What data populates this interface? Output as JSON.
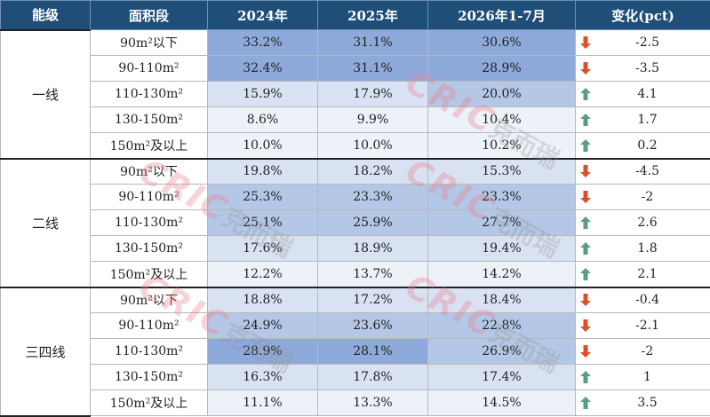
{
  "header": {
    "tier": "能级",
    "area": "面积段",
    "y2024": "2024年",
    "y2025": "2025年",
    "y2026": "2026年1-7月",
    "change": "变化(pct)"
  },
  "groups": [
    {
      "tier": "一线",
      "rows": [
        {
          "area": "90m²以下",
          "v2024": "33.2%",
          "v2025": "31.1%",
          "v2026": "30.6%",
          "change": "-2.5",
          "dir": "down"
        },
        {
          "area": "90-110m²",
          "v2024": "32.4%",
          "v2025": "31.1%",
          "v2026": "28.9%",
          "change": "-3.5",
          "dir": "down"
        },
        {
          "area": "110-130m²",
          "v2024": "15.9%",
          "v2025": "17.9%",
          "v2026": "20.0%",
          "change": "4.1",
          "dir": "up"
        },
        {
          "area": "130-150m²",
          "v2024": "8.6%",
          "v2025": "9.9%",
          "v2026": "10.4%",
          "change": "1.7",
          "dir": "up"
        },
        {
          "area": "150m²及以上",
          "v2024": "10.0%",
          "v2025": "10.0%",
          "v2026": "10.2%",
          "change": "0.2",
          "dir": "up"
        }
      ]
    },
    {
      "tier": "二线",
      "rows": [
        {
          "area": "90m²以下",
          "v2024": "19.8%",
          "v2025": "18.2%",
          "v2026": "15.3%",
          "change": "-4.5",
          "dir": "down"
        },
        {
          "area": "90-110m²",
          "v2024": "25.3%",
          "v2025": "23.3%",
          "v2026": "23.3%",
          "change": "-2",
          "dir": "down"
        },
        {
          "area": "110-130m²",
          "v2024": "25.1%",
          "v2025": "25.9%",
          "v2026": "27.7%",
          "change": "2.6",
          "dir": "up"
        },
        {
          "area": "130-150m²",
          "v2024": "17.6%",
          "v2025": "18.9%",
          "v2026": "19.4%",
          "change": "1.8",
          "dir": "up"
        },
        {
          "area": "150m²及以上",
          "v2024": "12.2%",
          "v2025": "13.7%",
          "v2026": "14.2%",
          "change": "2.1",
          "dir": "up"
        }
      ]
    },
    {
      "tier": "三四线",
      "rows": [
        {
          "area": "90m²以下",
          "v2024": "18.8%",
          "v2025": "17.2%",
          "v2026": "18.4%",
          "change": "-0.4",
          "dir": "down"
        },
        {
          "area": "90-110m²",
          "v2024": "24.9%",
          "v2025": "23.6%",
          "v2026": "22.8%",
          "change": "-2.1",
          "dir": "down"
        },
        {
          "area": "110-130m²",
          "v2024": "28.9%",
          "v2025": "28.1%",
          "v2026": "26.9%",
          "change": "-2",
          "dir": "down"
        },
        {
          "area": "130-150m²",
          "v2024": "16.3%",
          "v2025": "17.8%",
          "v2026": "17.4%",
          "change": "1",
          "dir": "up"
        },
        {
          "area": "150m²及以上",
          "v2024": "11.1%",
          "v2025": "13.3%",
          "v2026": "14.5%",
          "change": "3.5",
          "dir": "up"
        }
      ]
    }
  ],
  "watermark": {
    "latin": "CRIC",
    "cn": "克而瑞"
  },
  "colors": {
    "header_bg": "#1f4e79",
    "up_arrow": "#5a9e7e",
    "down_arrow": "#d9502b",
    "heat_high": "#8eaadb",
    "heat_mid": "#b4c7e7",
    "heat_low": "#d9e2f3",
    "heat_lowest": "#edf2f9"
  },
  "icons": {
    "up": "arrow-up-icon",
    "down": "arrow-down-icon"
  }
}
